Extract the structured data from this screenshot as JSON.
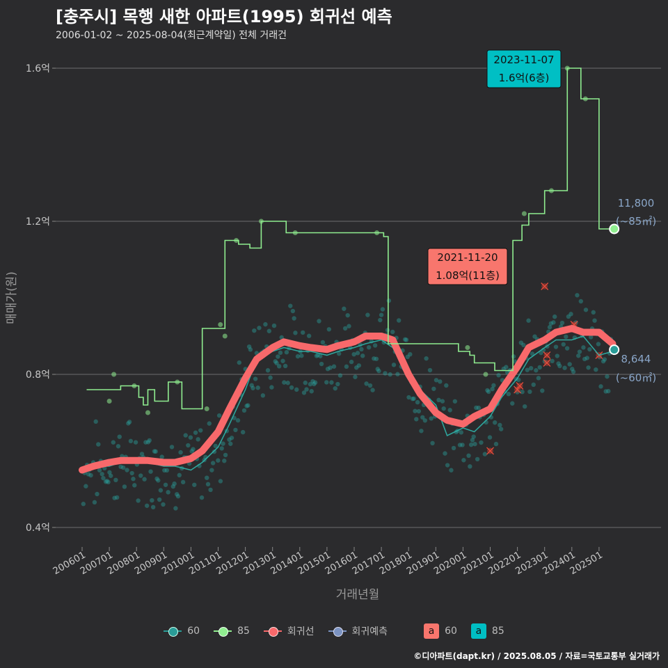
{
  "title": "[충주시] 목행 새한 아파트(1995) 회귀선 예측",
  "subtitle": "2006-01-02 ~ 2025-08-04(최근계약일) 전체 거래건",
  "caption": "©디아파트(dapt.kr) / 2025.08.05 / 자료=국토교통부 실거래가",
  "legend": {
    "items": [
      {
        "label": "60",
        "color": "#2a9d98"
      },
      {
        "label": "85",
        "color": "#90ee90"
      },
      {
        "label": "회귀선",
        "color": "#f8696b"
      },
      {
        "label": "회귀예측",
        "color": "#7b93c2"
      }
    ],
    "box_items": [
      {
        "letter": "a",
        "label": "60",
        "color": "#f8766d"
      },
      {
        "letter": "a",
        "label": "85",
        "color": "#00bfc4"
      }
    ]
  },
  "annotations": {
    "max85": {
      "date": "2023-11-07",
      "text": "1.6억(6층)",
      "color": "#00bfc4"
    },
    "max60": {
      "date": "2021-11-20",
      "text": "1.08억(11층)",
      "color": "#f8766d"
    },
    "pred85": {
      "value": "11,800",
      "area": "(~85㎡)",
      "color": "#8aa6c8"
    },
    "pred60": {
      "value": "8,644",
      "area": "(~60㎡)",
      "color": "#8aa6c8"
    }
  },
  "chart_data": {
    "type": "scatter",
    "xlabel": "거래년월",
    "ylabel": "매매가(원)",
    "x_range": [
      "2006-01",
      "2025-08"
    ],
    "ylim": [
      0.35,
      1.65
    ],
    "yticks": [
      {
        "v": 0.4,
        "label": "0.4억"
      },
      {
        "v": 0.8,
        "label": "0.8억"
      },
      {
        "v": 1.2,
        "label": "1.2억"
      },
      {
        "v": 1.6,
        "label": "1.6억"
      }
    ],
    "xticks": [
      "200601",
      "200701",
      "200801",
      "200901",
      "201001",
      "201101",
      "201201",
      "201301",
      "201401",
      "201501",
      "201601",
      "201701",
      "201801",
      "201901",
      "202001",
      "202101",
      "202201",
      "202301",
      "202401",
      "202501"
    ],
    "grid": true,
    "series": [
      {
        "name": "85",
        "color": "#90ee90",
        "step_line": [
          [
            "2006-03",
            0.76
          ],
          [
            "2006-12",
            0.76
          ],
          [
            "2007-06",
            0.77
          ],
          [
            "2008-02",
            0.74
          ],
          [
            "2008-04",
            0.72
          ],
          [
            "2008-06",
            0.76
          ],
          [
            "2008-09",
            0.73
          ],
          [
            "2009-03",
            0.78
          ],
          [
            "2009-09",
            0.78
          ],
          [
            "2009-09",
            0.71
          ],
          [
            "2010-06",
            0.71
          ],
          [
            "2010-06",
            0.92
          ],
          [
            "2011-04",
            0.92
          ],
          [
            "2011-04",
            1.15
          ],
          [
            "2011-10",
            1.14
          ],
          [
            "2012-03",
            1.13
          ],
          [
            "2012-08",
            1.2
          ],
          [
            "2013-05",
            1.2
          ],
          [
            "2013-07",
            1.17
          ],
          [
            "2014-03",
            1.17
          ],
          [
            "2016-08",
            1.17
          ],
          [
            "2017-02",
            1.16
          ],
          [
            "2017-04",
            0.88
          ],
          [
            "2017-09",
            0.88
          ],
          [
            "2019-11",
            0.86
          ],
          [
            "2020-04",
            0.85
          ],
          [
            "2020-06",
            0.83
          ],
          [
            "2020-09",
            0.83
          ],
          [
            "2021-03",
            0.81
          ],
          [
            "2021-11",
            0.81
          ],
          [
            "2021-11",
            1.15
          ],
          [
            "2022-03",
            1.19
          ],
          [
            "2022-06",
            1.19
          ],
          [
            "2022-06",
            1.22
          ],
          [
            "2022-09",
            1.22
          ],
          [
            "2023-01",
            1.28
          ],
          [
            "2023-06",
            1.28
          ],
          [
            "2023-11",
            1.6
          ],
          [
            "2024-02",
            1.6
          ],
          [
            "2024-05",
            1.52
          ],
          [
            "2025-01",
            1.52
          ],
          [
            "2025-01",
            1.18
          ],
          [
            "2025-08",
            1.18
          ]
        ],
        "points": [
          [
            "2007-03",
            0.8
          ],
          [
            "2007-01",
            0.73
          ],
          [
            "2007-12",
            0.77
          ],
          [
            "2008-06",
            0.7
          ],
          [
            "2009-07",
            0.78
          ],
          [
            "2010-08",
            0.71
          ],
          [
            "2011-02",
            0.93
          ],
          [
            "2011-04",
            0.9
          ],
          [
            "2011-09",
            1.15
          ],
          [
            "2012-08",
            1.2
          ],
          [
            "2013-11",
            1.17
          ],
          [
            "2016-11",
            1.17
          ],
          [
            "2020-03",
            0.87
          ],
          [
            "2020-11",
            0.8
          ],
          [
            "2022-04",
            1.22
          ],
          [
            "2023-04",
            1.28
          ],
          [
            "2023-11",
            1.6
          ],
          [
            "2024-07",
            1.52
          ],
          [
            "2025-07",
            1.18
          ]
        ]
      },
      {
        "name": "60",
        "color": "#2a9d98",
        "avg_line": [
          [
            "2006-01",
            0.55
          ],
          [
            "2006-06",
            0.56
          ],
          [
            "2007-01",
            0.56
          ],
          [
            "2007-06",
            0.57
          ],
          [
            "2008-01",
            0.57
          ],
          [
            "2008-06",
            0.57
          ],
          [
            "2009-01",
            0.56
          ],
          [
            "2009-06",
            0.56
          ],
          [
            "2010-01",
            0.55
          ],
          [
            "2010-06",
            0.57
          ],
          [
            "2011-01",
            0.61
          ],
          [
            "2011-06",
            0.67
          ],
          [
            "2012-01",
            0.76
          ],
          [
            "2012-06",
            0.84
          ],
          [
            "2013-01",
            0.86
          ],
          [
            "2013-06",
            0.87
          ],
          [
            "2014-01",
            0.86
          ],
          [
            "2014-06",
            0.86
          ],
          [
            "2015-01",
            0.85
          ],
          [
            "2015-06",
            0.86
          ],
          [
            "2016-01",
            0.87
          ],
          [
            "2016-06",
            0.88
          ],
          [
            "2017-01",
            0.89
          ],
          [
            "2017-06",
            0.87
          ],
          [
            "2018-01",
            0.8
          ],
          [
            "2018-06",
            0.76
          ],
          [
            "2019-01",
            0.72
          ],
          [
            "2019-06",
            0.64
          ],
          [
            "2020-01",
            0.66
          ],
          [
            "2020-06",
            0.65
          ],
          [
            "2021-01",
            0.69
          ],
          [
            "2021-06",
            0.74
          ],
          [
            "2022-01",
            0.79
          ],
          [
            "2022-06",
            0.84
          ],
          [
            "2023-01",
            0.87
          ],
          [
            "2023-06",
            0.89
          ],
          [
            "2024-01",
            0.89
          ],
          [
            "2024-06",
            0.9
          ],
          [
            "2025-01",
            0.85
          ],
          [
            "2025-07",
            0.86
          ]
        ]
      },
      {
        "name": "회귀선",
        "color": "#f8696b",
        "line": [
          [
            "2006-01",
            0.55
          ],
          [
            "2006-06",
            0.56
          ],
          [
            "2007-01",
            0.57
          ],
          [
            "2007-06",
            0.575
          ],
          [
            "2008-01",
            0.575
          ],
          [
            "2008-06",
            0.575
          ],
          [
            "2009-01",
            0.57
          ],
          [
            "2009-06",
            0.57
          ],
          [
            "2010-01",
            0.58
          ],
          [
            "2010-06",
            0.6
          ],
          [
            "2011-01",
            0.65
          ],
          [
            "2011-06",
            0.71
          ],
          [
            "2012-01",
            0.79
          ],
          [
            "2012-06",
            0.84
          ],
          [
            "2013-01",
            0.87
          ],
          [
            "2013-06",
            0.885
          ],
          [
            "2014-01",
            0.875
          ],
          [
            "2014-06",
            0.87
          ],
          [
            "2015-01",
            0.865
          ],
          [
            "2015-06",
            0.875
          ],
          [
            "2016-01",
            0.885
          ],
          [
            "2016-06",
            0.9
          ],
          [
            "2017-01",
            0.9
          ],
          [
            "2017-06",
            0.89
          ],
          [
            "2018-01",
            0.8
          ],
          [
            "2018-06",
            0.75
          ],
          [
            "2019-01",
            0.7
          ],
          [
            "2019-06",
            0.68
          ],
          [
            "2020-01",
            0.67
          ],
          [
            "2020-06",
            0.69
          ],
          [
            "2021-01",
            0.71
          ],
          [
            "2021-06",
            0.76
          ],
          [
            "2022-01",
            0.82
          ],
          [
            "2022-06",
            0.87
          ],
          [
            "2023-01",
            0.89
          ],
          [
            "2023-06",
            0.91
          ],
          [
            "2024-01",
            0.92
          ],
          [
            "2024-06",
            0.91
          ],
          [
            "2025-01",
            0.91
          ],
          [
            "2025-07",
            0.88
          ]
        ]
      },
      {
        "name": "회귀예측",
        "color": "#7b93c2",
        "points": [
          [
            "2025-08",
            1.18
          ],
          [
            "2025-08",
            0.8644
          ]
        ]
      }
    ],
    "outliers": [
      [
        "2021-01",
        0.6
      ],
      [
        "2022-01",
        0.76
      ],
      [
        "2022-02",
        0.77
      ],
      [
        "2023-01",
        1.03
      ],
      [
        "2023-02",
        0.85
      ],
      [
        "2023-02",
        0.83
      ],
      [
        "2024-02",
        0.93
      ],
      [
        "2025-01",
        0.85
      ]
    ]
  }
}
